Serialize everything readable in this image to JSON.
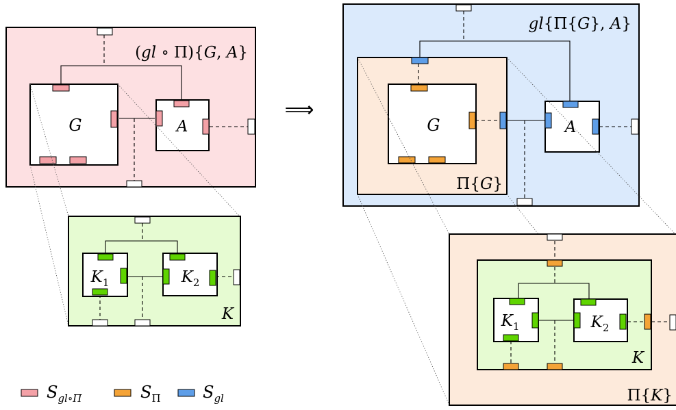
{
  "arrow": "⟹",
  "colors": {
    "pink_bg": "#fde0e2",
    "green_bg": "#e6fbd2",
    "blue_bg": "#dbeafc",
    "peach_bg": "#fdeadb",
    "port_pink": "#f4a1a7",
    "port_orange": "#f4a337",
    "port_blue": "#5e9ee8",
    "port_green": "#5fd400"
  },
  "left": {
    "outer": {
      "label": {
        "p1": "(",
        "gl": "gl",
        "circ": " ∘ ",
        "pi": "Π",
        "rest": ")",
        "brace_open": "{",
        "g": "G",
        "comma": ", ",
        "a": "A",
        "brace_close": "}"
      },
      "g_label": "G",
      "a_label": "A"
    },
    "inner": {
      "label": "K",
      "k1": {
        "main": "K",
        "sub": "1"
      },
      "k2": {
        "main": "K",
        "sub": "2"
      }
    }
  },
  "right": {
    "outer": {
      "label": {
        "gl": "gl",
        "brace_open": "{",
        "pi": "Π",
        "b2": "{",
        "g": "G",
        "b3": "}",
        "comma": ", ",
        "a": "A",
        "brace_close": "}"
      },
      "pi_g_label": {
        "pi": "Π",
        "b1": "{",
        "g": "G",
        "b2": "}"
      },
      "g_label": "G",
      "a_label": "A"
    },
    "inner": {
      "pi_k_label": {
        "pi": "Π",
        "b1": "{",
        "k": "K",
        "b2": "}"
      },
      "k_label": "K",
      "k1": {
        "main": "K",
        "sub": "1"
      },
      "k2": {
        "main": "K",
        "sub": "2"
      }
    }
  },
  "legend": [
    {
      "main": "S",
      "sub": "gl∘Π",
      "color": "port_pink"
    },
    {
      "main": "S",
      "sub": "Π",
      "color": "port_orange"
    },
    {
      "main": "S",
      "sub": "gl",
      "color": "port_blue"
    }
  ]
}
